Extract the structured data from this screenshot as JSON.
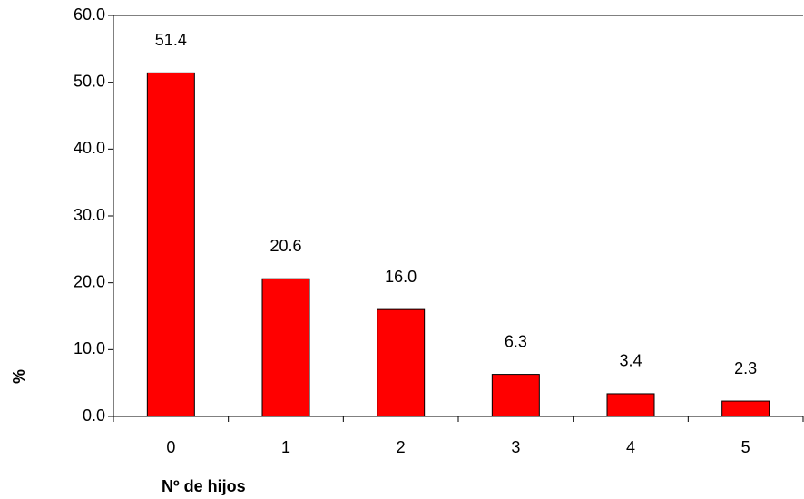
{
  "chart_data": {
    "type": "bar",
    "x_label": "Nº de hijos",
    "y_label": "%",
    "categories": [
      "0",
      "1",
      "2",
      "3",
      "4",
      "5"
    ],
    "values": [
      51.4,
      20.6,
      16.0,
      6.3,
      3.4,
      2.3
    ],
    "value_labels": [
      "51.4",
      "20.6",
      "16.0",
      "6.3",
      "3.4",
      "2.3"
    ],
    "color": "#ff0000",
    "ylim": [
      0,
      60
    ],
    "yticks": [
      {
        "value": 0,
        "label": "0.0"
      },
      {
        "value": 10,
        "label": "10.0"
      },
      {
        "value": 20,
        "label": "20.0"
      },
      {
        "value": 30,
        "label": "30.0"
      },
      {
        "value": 40,
        "label": "40.0"
      },
      {
        "value": 50,
        "label": "50.0"
      },
      {
        "value": 60,
        "label": "60.0"
      }
    ],
    "grid": false
  }
}
